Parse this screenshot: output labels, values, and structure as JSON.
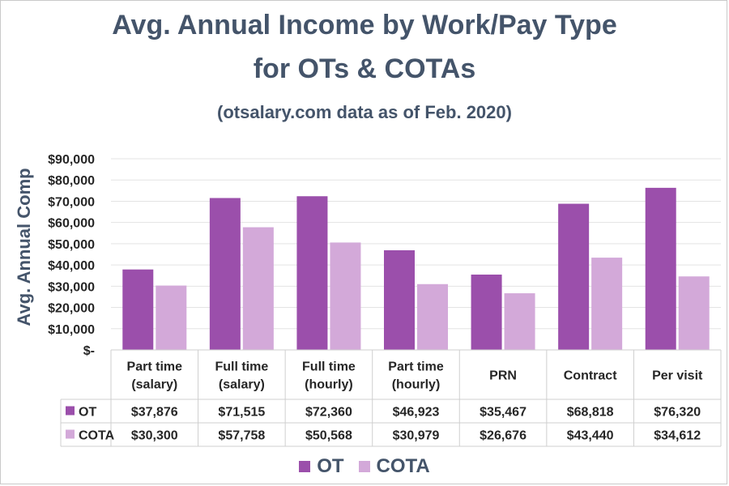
{
  "chart_data": {
    "type": "bar",
    "title": "Avg. Annual Income by Work/Pay Type",
    "title_line2": "for OTs & COTAs",
    "subtitle": "(otsalary.com data as of Feb. 2020)",
    "ylabel": "Avg. Annual Comp",
    "xlabel": "",
    "categories": [
      [
        "Part time",
        "(salary)"
      ],
      [
        "Full time",
        "(salary)"
      ],
      [
        "Full time",
        "(hourly)"
      ],
      [
        "Part time",
        "(hourly)"
      ],
      [
        "PRN"
      ],
      [
        "Contract"
      ],
      [
        "Per visit"
      ]
    ],
    "series": [
      {
        "name": "OT",
        "color": "#9b4fab",
        "values": [
          37876,
          71515,
          72360,
          46923,
          35467,
          68818,
          76320
        ],
        "labels": [
          "$37,876",
          "$71,515",
          "$72,360",
          "$46,923",
          "$35,467",
          "$68,818",
          "$76,320"
        ]
      },
      {
        "name": "COTA",
        "color": "#d3a9d9",
        "values": [
          30300,
          57758,
          50568,
          30979,
          26676,
          43440,
          34612
        ],
        "labels": [
          "$30,300",
          "$57,758",
          "$50,568",
          "$30,979",
          "$26,676",
          "$43,440",
          "$34,612"
        ]
      }
    ],
    "ylim": [
      0,
      90000
    ],
    "yticks": [
      0,
      10000,
      20000,
      30000,
      40000,
      50000,
      60000,
      70000,
      80000,
      90000
    ],
    "ytick_labels": [
      "$-",
      "$10,000",
      "$20,000",
      "$30,000",
      "$40,000",
      "$50,000",
      "$60,000",
      "$70,000",
      "$80,000",
      "$90,000"
    ],
    "grid": true,
    "legend": "bottom",
    "data_table": true
  }
}
